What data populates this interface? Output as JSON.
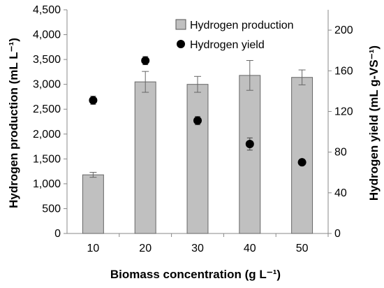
{
  "chart_data": {
    "type": "bar",
    "categories": [
      "10",
      "20",
      "30",
      "40",
      "50"
    ],
    "series": [
      {
        "name": "Hydrogen production",
        "type": "bar",
        "axis": "left",
        "values": [
          1180,
          3050,
          3000,
          3180,
          3140
        ],
        "error": [
          50,
          210,
          160,
          300,
          150
        ],
        "color": "#c0c0c0"
      },
      {
        "name": "Hydrogen yield",
        "type": "scatter",
        "axis": "right",
        "values": [
          131,
          170,
          111,
          88,
          70
        ],
        "error": [
          4,
          4,
          4,
          6,
          2
        ],
        "color": "#000000"
      }
    ],
    "xlabel": "Biomass concentration (g L⁻¹)",
    "ylabel_left": "Hydrogen production (mL L⁻¹)",
    "ylabel_right": "Hydrogen yield (mL g-VS⁻¹)",
    "ylim_left": [
      0,
      4500
    ],
    "ylim_right": [
      0,
      220
    ],
    "yticks_left": [
      "0",
      "500",
      "1,000",
      "1,500",
      "2,000",
      "2,500",
      "3,000",
      "3,500",
      "4,000",
      "4,500"
    ],
    "yticks_right": [
      "0",
      "40",
      "80",
      "120",
      "160",
      "200"
    ],
    "yticks_right_values": [
      0,
      40,
      80,
      120,
      160,
      200
    ],
    "grid": false,
    "legend_position": "top-right"
  }
}
